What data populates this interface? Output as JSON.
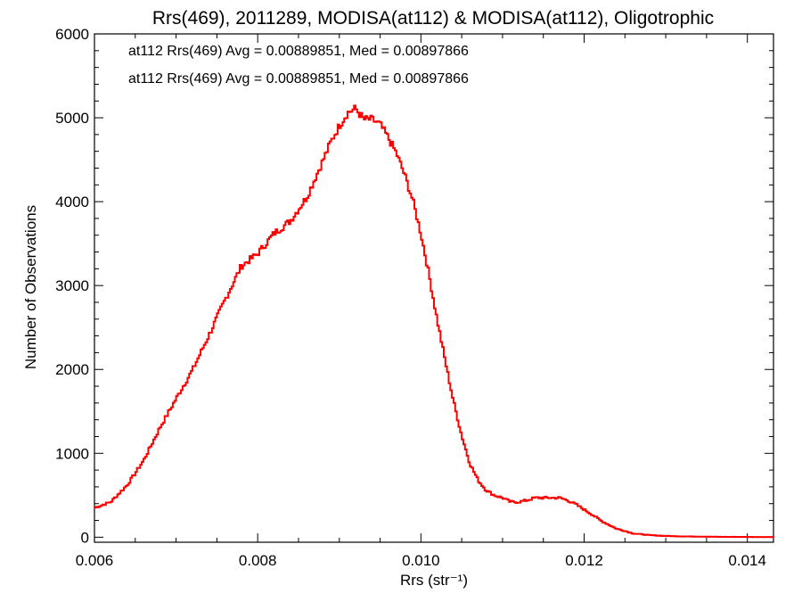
{
  "chart_data": {
    "type": "line",
    "step": true,
    "title": "Rrs(469), 2011289, MODISA(at112) & MODISA(at112), Oligotrophic",
    "xlabel": "Rrs (str⁻¹)",
    "ylabel": "Number of Observations",
    "xlim": [
      0.006,
      0.01432
    ],
    "ylim": [
      -60,
      6000
    ],
    "x_ticks": [
      0.006,
      0.008,
      0.01,
      0.012,
      0.014
    ],
    "x_tick_labels": [
      "0.006",
      "0.008",
      "0.010",
      "0.012",
      "0.014"
    ],
    "y_ticks": [
      0,
      1000,
      2000,
      3000,
      4000,
      5000,
      6000
    ],
    "y_tick_labels": [
      "0",
      "1000",
      "2000",
      "3000",
      "4000",
      "5000",
      "6000"
    ],
    "grid": false,
    "annotations": [
      {
        "text": "at112 Rrs(469) Avg = 0.00889851, Med = 0.00897866",
        "color": "#000000"
      },
      {
        "text": "at112 Rrs(469) Avg = 0.00889851, Med = 0.00897866",
        "color": "#ff0000"
      }
    ],
    "series": [
      {
        "color": "#ff0000",
        "x": [
          0.006,
          0.0062,
          0.0064,
          0.0066,
          0.0068,
          0.007,
          0.0072,
          0.0074,
          0.0076,
          0.0078,
          0.008,
          0.0082,
          0.0084,
          0.0086,
          0.0087,
          0.0088,
          0.0089,
          0.009,
          0.0091,
          0.0092,
          0.0093,
          0.0094,
          0.0095,
          0.0096,
          0.0097,
          0.0098,
          0.0099,
          0.01,
          0.0101,
          0.0102,
          0.0103,
          0.0104,
          0.0105,
          0.0106,
          0.0107,
          0.0108,
          0.0109,
          0.011,
          0.0111,
          0.0112,
          0.0113,
          0.0114,
          0.0115,
          0.0116,
          0.0117,
          0.0118,
          0.0119,
          0.012,
          0.0121,
          0.0122,
          0.0123,
          0.0124,
          0.0125,
          0.0126,
          0.0128,
          0.013,
          0.0132,
          0.0134,
          0.0136,
          0.0138,
          0.014,
          0.0142
        ],
        "y": [
          350,
          420,
          620,
          910,
          1300,
          1650,
          1990,
          2400,
          2830,
          3230,
          3380,
          3620,
          3770,
          4050,
          4270,
          4490,
          4720,
          4900,
          5060,
          5110,
          4980,
          4980,
          4920,
          4760,
          4580,
          4320,
          4020,
          3620,
          3130,
          2590,
          2090,
          1620,
          1210,
          880,
          680,
          560,
          500,
          470,
          420,
          420,
          440,
          470,
          470,
          470,
          470,
          440,
          390,
          330,
          270,
          200,
          150,
          100,
          75,
          45,
          25,
          15,
          10,
          8,
          5,
          4,
          3,
          2
        ]
      }
    ]
  }
}
